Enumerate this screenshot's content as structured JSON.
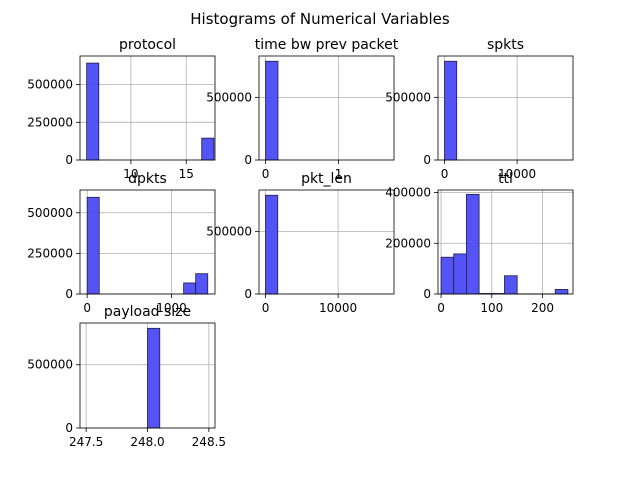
{
  "figure": {
    "title": "Histograms of Numerical Variables"
  },
  "style": {
    "bar_color": "#4B4BF5",
    "bar_edge": "#1f1f3f",
    "grid": "#b0b0b0"
  },
  "chart_data": [
    {
      "type": "bar",
      "title": "protocol",
      "x_ticks": [
        {
          "v": 10,
          "label": "10"
        },
        {
          "v": 15,
          "label": "15"
        }
      ],
      "y_ticks": [
        {
          "v": 0,
          "label": "0"
        },
        {
          "v": 250000,
          "label": "250000"
        },
        {
          "v": 500000,
          "label": "500000"
        }
      ],
      "xlim": [
        5.4,
        17.6
      ],
      "ylim": [
        0,
        690000
      ],
      "grid": true,
      "bins": [
        [
          6,
          7.1,
          643000
        ],
        [
          16.4,
          17.5,
          145000
        ]
      ]
    },
    {
      "type": "bar",
      "title": "time bw prev packet",
      "x_ticks": [
        {
          "v": 0,
          "label": "0"
        },
        {
          "v": 1,
          "label": "1"
        }
      ],
      "y_ticks": [
        {
          "v": 0,
          "label": "0"
        },
        {
          "v": 500000,
          "label": "500000"
        }
      ],
      "xlim": [
        -0.09,
        1.76
      ],
      "ylim": [
        0,
        830000
      ],
      "grid": true,
      "bins": [
        [
          0,
          0.17,
          788000
        ]
      ]
    },
    {
      "type": "bar",
      "title": "spkts",
      "x_ticks": [
        {
          "v": 0,
          "label": "0"
        },
        {
          "v": 10000,
          "label": "10000"
        }
      ],
      "y_ticks": [
        {
          "v": 0,
          "label": "0"
        },
        {
          "v": 500000,
          "label": "500000"
        }
      ],
      "xlim": [
        -900,
        17700
      ],
      "ylim": [
        0,
        830000
      ],
      "grid": true,
      "bins": [
        [
          0,
          1680,
          788000
        ]
      ]
    },
    {
      "type": "bar",
      "title": "dpkts",
      "x_ticks": [
        {
          "v": 0,
          "label": "0"
        },
        {
          "v": 1000,
          "label": "1000"
        }
      ],
      "y_ticks": [
        {
          "v": 0,
          "label": "0"
        },
        {
          "v": 250000,
          "label": "250000"
        },
        {
          "v": 500000,
          "label": "500000"
        }
      ],
      "xlim": [
        -85,
        1515
      ],
      "ylim": [
        0,
        640000
      ],
      "grid": true,
      "bins": [
        [
          0,
          143,
          595000
        ],
        [
          1143,
          1286,
          68000
        ],
        [
          1286,
          1429,
          125000
        ]
      ]
    },
    {
      "type": "bar",
      "title": "pkt_len",
      "x_ticks": [
        {
          "v": 0,
          "label": "0"
        },
        {
          "v": 10000,
          "label": "10000"
        }
      ],
      "y_ticks": [
        {
          "v": 0,
          "label": "0"
        },
        {
          "v": 500000,
          "label": "500000"
        }
      ],
      "xlim": [
        -900,
        17700
      ],
      "ylim": [
        0,
        830000
      ],
      "grid": true,
      "bins": [
        [
          0,
          1680,
          788000
        ]
      ]
    },
    {
      "type": "bar",
      "title": "ttl",
      "x_ticks": [
        {
          "v": 0,
          "label": "0"
        },
        {
          "v": 100,
          "label": "100"
        },
        {
          "v": 200,
          "label": "200"
        }
      ],
      "y_ticks": [
        {
          "v": 0,
          "label": "0"
        },
        {
          "v": 200000,
          "label": "200000"
        },
        {
          "v": 400000,
          "label": "400000"
        }
      ],
      "xlim": [
        -6,
        260
      ],
      "ylim": [
        0,
        410000
      ],
      "grid": true,
      "bins": [
        [
          0,
          25,
          145000
        ],
        [
          25,
          50,
          158000
        ],
        [
          50,
          75,
          393000
        ],
        [
          75,
          100,
          2000
        ],
        [
          100,
          125,
          2000
        ],
        [
          125,
          150,
          72000
        ],
        [
          150,
          175,
          500
        ],
        [
          175,
          200,
          500
        ],
        [
          200,
          225,
          500
        ],
        [
          225,
          250,
          18000
        ]
      ]
    },
    {
      "type": "bar",
      "title": "payload size",
      "x_ticks": [
        {
          "v": 247.5,
          "label": "247.5"
        },
        {
          "v": 248.0,
          "label": "248.0"
        },
        {
          "v": 248.5,
          "label": "248.5"
        }
      ],
      "y_ticks": [
        {
          "v": 0,
          "label": "0"
        },
        {
          "v": 500000,
          "label": "500000"
        }
      ],
      "xlim": [
        247.45,
        248.55
      ],
      "ylim": [
        0,
        830000
      ],
      "grid": true,
      "bins": [
        [
          248.0,
          248.1,
          788000
        ]
      ]
    }
  ]
}
